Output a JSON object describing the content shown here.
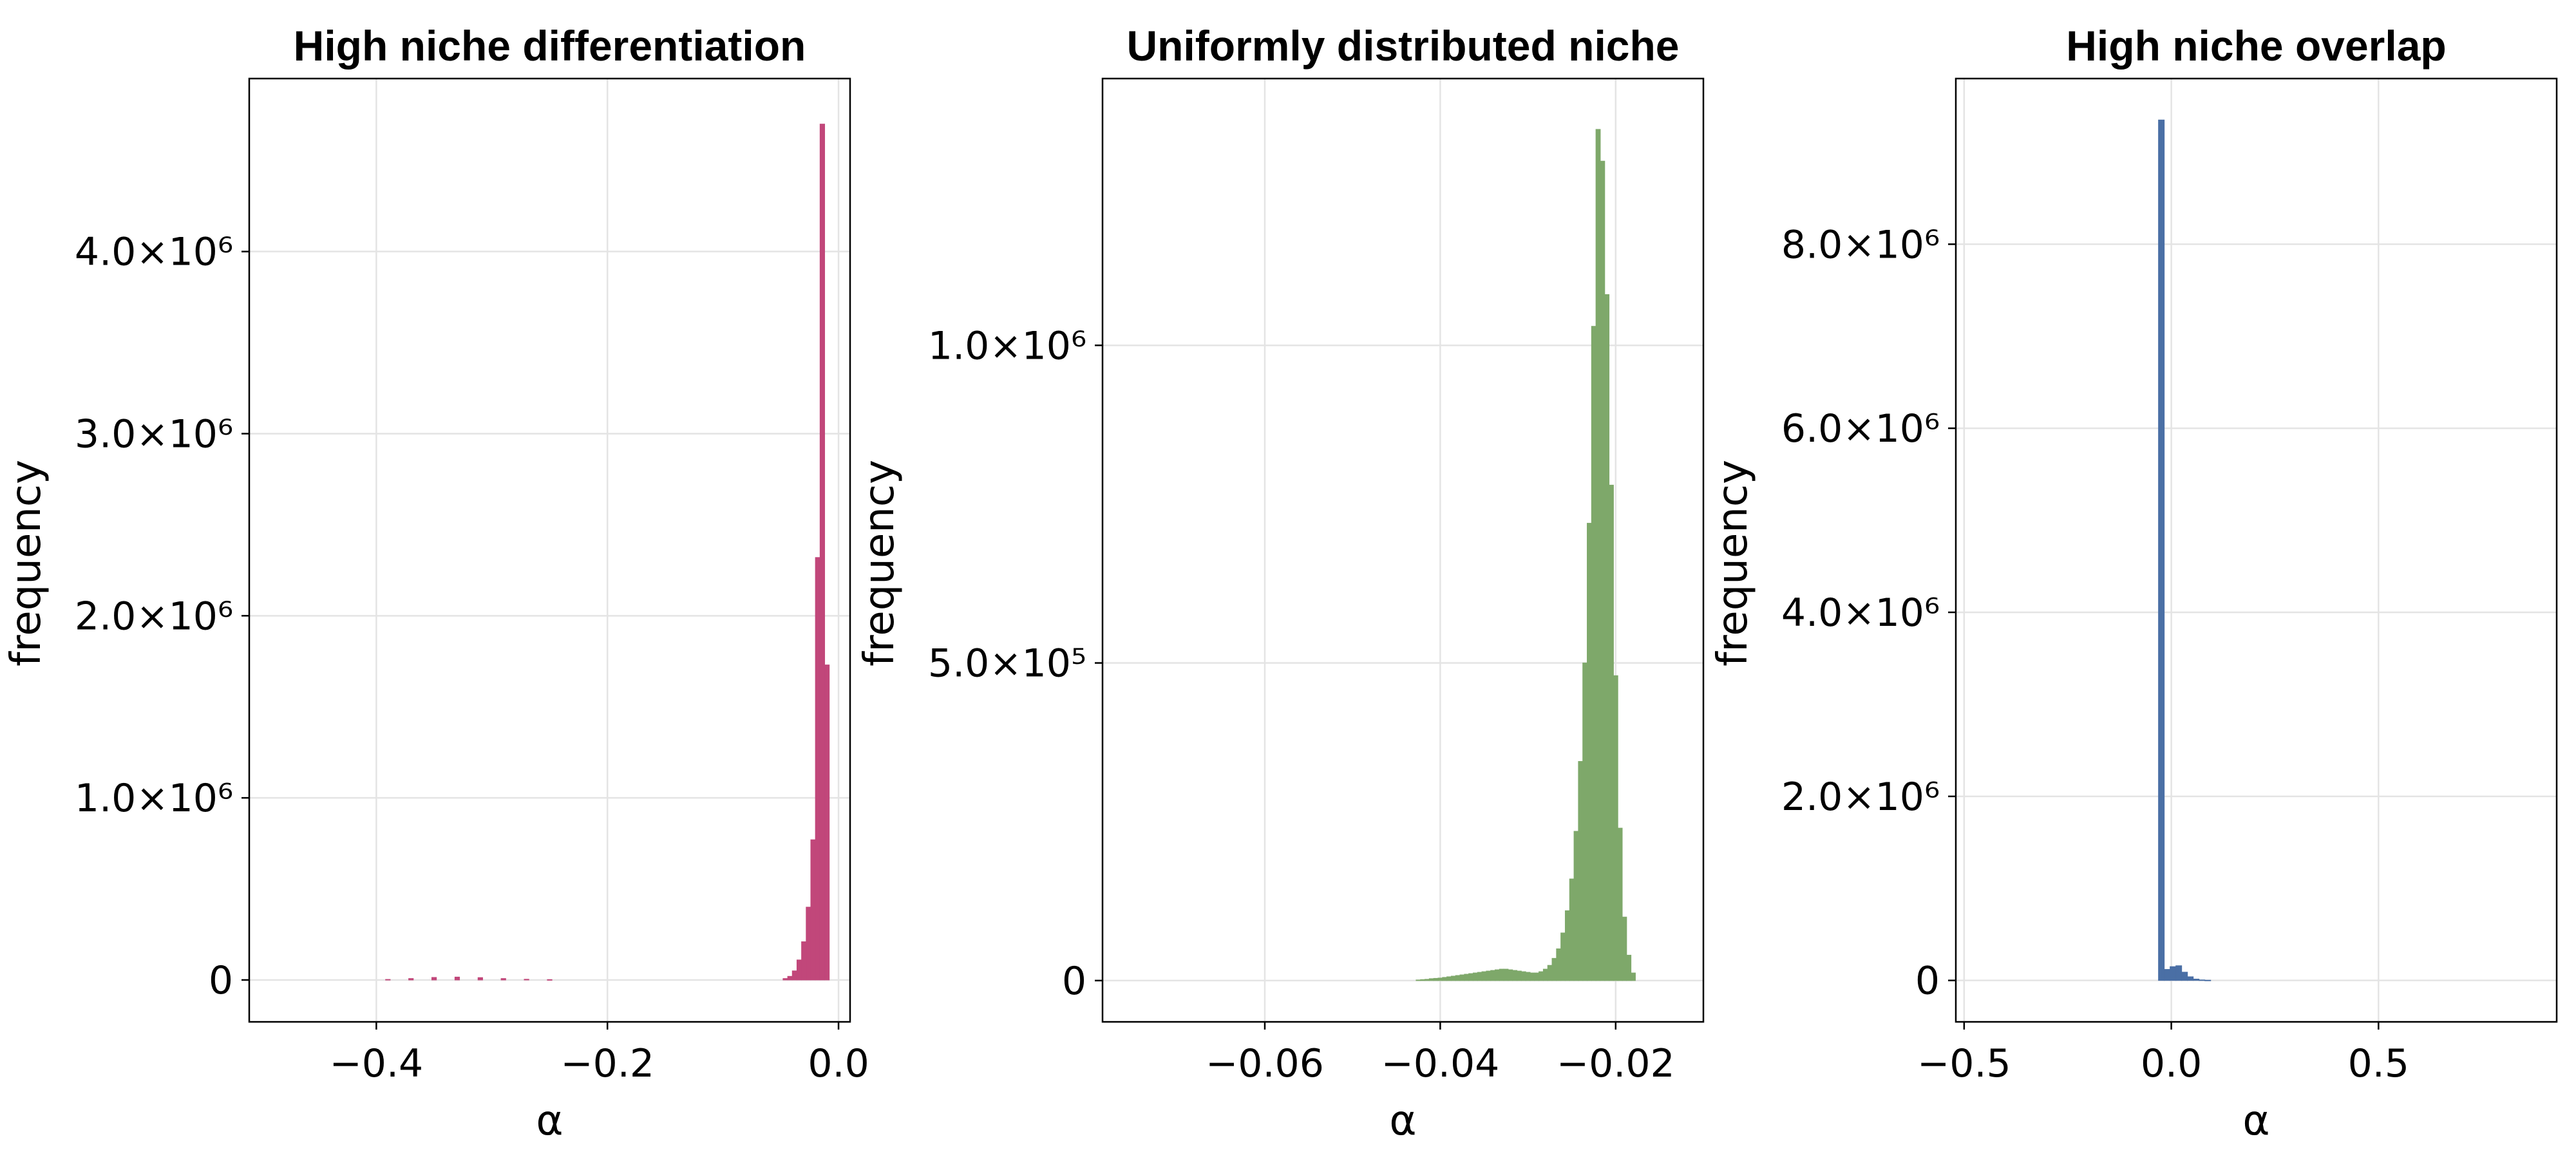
{
  "chart_data": [
    {
      "type": "bar",
      "title": "High niche differentiation",
      "xlabel": "α",
      "ylabel": "frequency",
      "color": "#c1477a",
      "xlim": [
        -0.51,
        0.01
      ],
      "ylim": [
        -230000,
        4950000
      ],
      "grid": true,
      "xticks": [
        {
          "v": -0.4,
          "label": "−0.4"
        },
        {
          "v": -0.2,
          "label": "−0.2"
        },
        {
          "v": 0.0,
          "label": "0.0"
        }
      ],
      "yticks": [
        {
          "v": 0,
          "label": "0"
        },
        {
          "v": 1000000,
          "label": "1.0×10⁶"
        },
        {
          "v": 2000000,
          "label": "2.0×10⁶"
        },
        {
          "v": 3000000,
          "label": "3.0×10⁶"
        },
        {
          "v": 4000000,
          "label": "4.0×10⁶"
        }
      ],
      "bin_width": 0.004,
      "bins": [
        {
          "x": -0.39,
          "y": 3000
        },
        {
          "x": -0.37,
          "y": 8000
        },
        {
          "x": -0.35,
          "y": 14000
        },
        {
          "x": -0.33,
          "y": 16000
        },
        {
          "x": -0.31,
          "y": 13000
        },
        {
          "x": -0.29,
          "y": 8000
        },
        {
          "x": -0.27,
          "y": 4000
        },
        {
          "x": -0.25,
          "y": 2000
        },
        {
          "x": -0.046,
          "y": 8000
        },
        {
          "x": -0.042,
          "y": 20000
        },
        {
          "x": -0.038,
          "y": 50000
        },
        {
          "x": -0.034,
          "y": 110000
        },
        {
          "x": -0.03,
          "y": 210000
        },
        {
          "x": -0.026,
          "y": 400000
        },
        {
          "x": -0.022,
          "y": 770000
        },
        {
          "x": -0.018,
          "y": 2320000
        },
        {
          "x": -0.014,
          "y": 4700000
        },
        {
          "x": -0.01,
          "y": 1730000
        }
      ]
    },
    {
      "type": "bar",
      "title": "Uniformly distributed niche",
      "xlabel": "α",
      "ylabel": "frequency",
      "color": "#7ea86a",
      "xlim": [
        -0.0785,
        -0.01
      ],
      "ylim": [
        -65000,
        1420000
      ],
      "grid": true,
      "xticks": [
        {
          "v": -0.06,
          "label": "−0.06"
        },
        {
          "v": -0.04,
          "label": "−0.04"
        },
        {
          "v": -0.02,
          "label": "−0.02"
        }
      ],
      "yticks": [
        {
          "v": 0,
          "label": "0"
        },
        {
          "v": 500000,
          "label": "5.0×10⁵"
        },
        {
          "v": 1000000,
          "label": "1.0×10⁶"
        }
      ],
      "bin_width": 0.0005,
      "bins": [
        {
          "x": -0.0425,
          "y": 1000
        },
        {
          "x": -0.042,
          "y": 1500
        },
        {
          "x": -0.0415,
          "y": 2000
        },
        {
          "x": -0.041,
          "y": 3000
        },
        {
          "x": -0.0405,
          "y": 3500
        },
        {
          "x": -0.04,
          "y": 4000
        },
        {
          "x": -0.0395,
          "y": 5000
        },
        {
          "x": -0.039,
          "y": 6000
        },
        {
          "x": -0.0385,
          "y": 7000
        },
        {
          "x": -0.038,
          "y": 8000
        },
        {
          "x": -0.0375,
          "y": 9000
        },
        {
          "x": -0.037,
          "y": 10000
        },
        {
          "x": -0.0365,
          "y": 11000
        },
        {
          "x": -0.036,
          "y": 12000
        },
        {
          "x": -0.0355,
          "y": 13000
        },
        {
          "x": -0.035,
          "y": 14000
        },
        {
          "x": -0.0345,
          "y": 15000
        },
        {
          "x": -0.034,
          "y": 16000
        },
        {
          "x": -0.0335,
          "y": 17000
        },
        {
          "x": -0.033,
          "y": 18000
        },
        {
          "x": -0.0325,
          "y": 18000
        },
        {
          "x": -0.032,
          "y": 17000
        },
        {
          "x": -0.0315,
          "y": 16000
        },
        {
          "x": -0.031,
          "y": 15000
        },
        {
          "x": -0.0305,
          "y": 14000
        },
        {
          "x": -0.03,
          "y": 13000
        },
        {
          "x": -0.0295,
          "y": 12000
        },
        {
          "x": -0.029,
          "y": 12000
        },
        {
          "x": -0.0285,
          "y": 14000
        },
        {
          "x": -0.028,
          "y": 18000
        },
        {
          "x": -0.0275,
          "y": 24000
        },
        {
          "x": -0.027,
          "y": 35000
        },
        {
          "x": -0.0265,
          "y": 50000
        },
        {
          "x": -0.026,
          "y": 75000
        },
        {
          "x": -0.0255,
          "y": 110000
        },
        {
          "x": -0.025,
          "y": 160000
        },
        {
          "x": -0.0245,
          "y": 235000
        },
        {
          "x": -0.024,
          "y": 345000
        },
        {
          "x": -0.0235,
          "y": 500000
        },
        {
          "x": -0.023,
          "y": 720000
        },
        {
          "x": -0.0225,
          "y": 1030000
        },
        {
          "x": -0.022,
          "y": 1340000
        },
        {
          "x": -0.0215,
          "y": 1290000
        },
        {
          "x": -0.021,
          "y": 1080000
        },
        {
          "x": -0.0205,
          "y": 780000
        },
        {
          "x": -0.02,
          "y": 480000
        },
        {
          "x": -0.0195,
          "y": 240000
        },
        {
          "x": -0.019,
          "y": 100000
        },
        {
          "x": -0.0185,
          "y": 40000
        },
        {
          "x": -0.018,
          "y": 12000
        }
      ]
    },
    {
      "type": "bar",
      "title": "High niche overlap",
      "xlabel": "α",
      "ylabel": "frequency",
      "color": "#4a6fa5",
      "xlim": [
        -0.52,
        0.93
      ],
      "ylim": [
        -450000,
        9800000
      ],
      "grid": true,
      "xticks": [
        {
          "v": -0.5,
          "label": "−0.5"
        },
        {
          "v": 0.0,
          "label": "0.0"
        },
        {
          "v": 0.5,
          "label": "0.5"
        }
      ],
      "yticks": [
        {
          "v": 0,
          "label": "0"
        },
        {
          "v": 2000000,
          "label": "2.0×10⁶"
        },
        {
          "v": 4000000,
          "label": "4.0×10⁶"
        },
        {
          "v": 6000000,
          "label": "6.0×10⁶"
        },
        {
          "v": 8000000,
          "label": "8.0×10⁶"
        }
      ],
      "bin_width": 0.014,
      "bins": [
        {
          "x": -0.024,
          "y": 9350000
        },
        {
          "x": -0.01,
          "y": 120000
        },
        {
          "x": 0.004,
          "y": 150000
        },
        {
          "x": 0.018,
          "y": 160000
        },
        {
          "x": 0.032,
          "y": 90000
        },
        {
          "x": 0.046,
          "y": 40000
        },
        {
          "x": 0.06,
          "y": 15000
        },
        {
          "x": 0.074,
          "y": 6000
        },
        {
          "x": 0.088,
          "y": 3000
        }
      ]
    }
  ]
}
